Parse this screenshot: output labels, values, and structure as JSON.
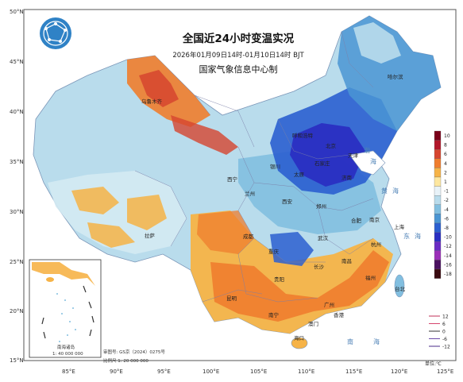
{
  "title": "全国近24小时变温实况",
  "period": "2026年01月09日14时-01月10日14时 BJT",
  "organization": "国家气象信息中心制",
  "unit_label": "单位:℃",
  "approval_number": "审图号: GS京（2024）0275号",
  "scale_text": "比例尺  1: 20 000 000",
  "inset": {
    "title": "南海诸岛",
    "scale": "1: 40 000 000"
  },
  "lat_labels": [
    "50°N",
    "45°N",
    "40°N",
    "35°N",
    "30°N",
    "25°N",
    "20°N",
    "15°N"
  ],
  "lon_labels": [
    "85°E",
    "90°E",
    "95°E",
    "100°E",
    "105°E",
    "110°E",
    "115°E",
    "120°E",
    "125°E"
  ],
  "color_legend": [
    {
      "label": "10",
      "color": "#7a0019"
    },
    {
      "label": "8",
      "color": "#b2182b"
    },
    {
      "label": "6",
      "color": "#d6452f"
    },
    {
      "label": "4",
      "color": "#ef7d2e"
    },
    {
      "label": "2",
      "color": "#f6b347"
    },
    {
      "label": "1",
      "color": "#fde7a0"
    },
    {
      "label": "-1",
      "color": "#e8f2f8"
    },
    {
      "label": "-2",
      "color": "#b9dcec"
    },
    {
      "label": "-4",
      "color": "#82bfe0"
    },
    {
      "label": "-6",
      "color": "#4a95d3"
    },
    {
      "label": "-8",
      "color": "#2b5fd0"
    },
    {
      "label": "-10",
      "color": "#2a2fc2"
    },
    {
      "label": "-12",
      "color": "#6a2bc4"
    },
    {
      "label": "-14",
      "color": "#9b2fb8"
    },
    {
      "label": "-16",
      "color": "#4b1160"
    },
    {
      "label": "-18",
      "color": "#3a0a10"
    }
  ],
  "contour_legend": [
    {
      "label": "12",
      "color": "#c0305a"
    },
    {
      "label": "6",
      "color": "#d6456e"
    },
    {
      "label": "0",
      "color": "#333333"
    },
    {
      "label": "-6",
      "color": "#6b4aa8"
    },
    {
      "label": "-12",
      "color": "#4a2b8a"
    }
  ],
  "cities": [
    "哈尔滨",
    "乌鲁木齐",
    "呼和浩特",
    "银川",
    "西宁",
    "兰州",
    "拉萨",
    "成都",
    "重庆",
    "西安",
    "郑州",
    "武汉",
    "合肥",
    "南京",
    "上海",
    "杭州",
    "长沙",
    "南昌",
    "福州",
    "贵阳",
    "昆明",
    "南宁",
    "广州",
    "香港",
    "澳门",
    "海口",
    "台北",
    "济南",
    "天津",
    "北京",
    "石家庄",
    "太原"
  ],
  "seas": [
    "渤",
    "海",
    "黄",
    "海",
    "东",
    "海",
    "南",
    "海"
  ]
}
